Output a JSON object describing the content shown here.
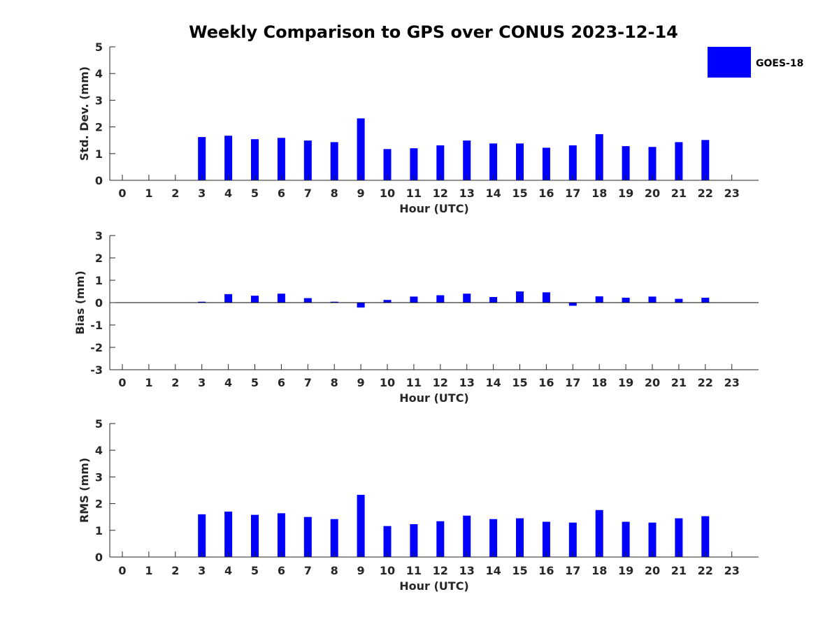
{
  "chart_data": [
    {
      "type": "bar",
      "title": "Weekly Comparison to GPS over CONUS 2023-12-14",
      "xlabel": "Hour (UTC)",
      "ylabel": "Std. Dev. (mm)",
      "ylim": [
        0,
        5
      ],
      "yticks": [
        0,
        1,
        2,
        3,
        4,
        5
      ],
      "categories": [
        0,
        1,
        2,
        3,
        4,
        5,
        6,
        7,
        8,
        9,
        10,
        11,
        12,
        13,
        14,
        15,
        16,
        17,
        18,
        19,
        20,
        21,
        22,
        23
      ],
      "series": [
        {
          "name": "GOES-18",
          "color": "#0000ff",
          "values": [
            null,
            null,
            null,
            1.62,
            1.67,
            1.54,
            1.59,
            1.49,
            1.43,
            2.32,
            1.17,
            1.2,
            1.31,
            1.49,
            1.38,
            1.38,
            1.22,
            1.31,
            1.73,
            1.28,
            1.25,
            1.43,
            1.51,
            null
          ]
        }
      ],
      "legend": "top-right"
    },
    {
      "type": "bar",
      "title": "",
      "xlabel": "Hour (UTC)",
      "ylabel": "Bias (mm)",
      "ylim": [
        -3,
        3
      ],
      "yticks": [
        -3,
        -2,
        -1,
        0,
        1,
        2,
        3
      ],
      "zero_line": true,
      "categories": [
        0,
        1,
        2,
        3,
        4,
        5,
        6,
        7,
        8,
        9,
        10,
        11,
        12,
        13,
        14,
        15,
        16,
        17,
        18,
        19,
        20,
        21,
        22,
        23
      ],
      "series": [
        {
          "name": "GOES-18",
          "color": "#0000ff",
          "values": [
            null,
            null,
            null,
            0.04,
            0.38,
            0.31,
            0.4,
            0.2,
            0.04,
            -0.22,
            0.12,
            0.27,
            0.33,
            0.4,
            0.25,
            0.5,
            0.46,
            -0.14,
            0.28,
            0.22,
            0.27,
            0.17,
            0.22,
            null
          ]
        }
      ]
    },
    {
      "type": "bar",
      "title": "",
      "xlabel": "Hour (UTC)",
      "ylabel": "RMS (mm)",
      "ylim": [
        0,
        5
      ],
      "yticks": [
        0,
        1,
        2,
        3,
        4,
        5
      ],
      "categories": [
        0,
        1,
        2,
        3,
        4,
        5,
        6,
        7,
        8,
        9,
        10,
        11,
        12,
        13,
        14,
        15,
        16,
        17,
        18,
        19,
        20,
        21,
        22,
        23
      ],
      "series": [
        {
          "name": "GOES-18",
          "color": "#0000ff",
          "values": [
            null,
            null,
            null,
            1.6,
            1.7,
            1.58,
            1.64,
            1.5,
            1.42,
            2.33,
            1.16,
            1.23,
            1.34,
            1.55,
            1.42,
            1.45,
            1.32,
            1.29,
            1.76,
            1.32,
            1.29,
            1.45,
            1.53,
            null
          ]
        }
      ]
    }
  ]
}
